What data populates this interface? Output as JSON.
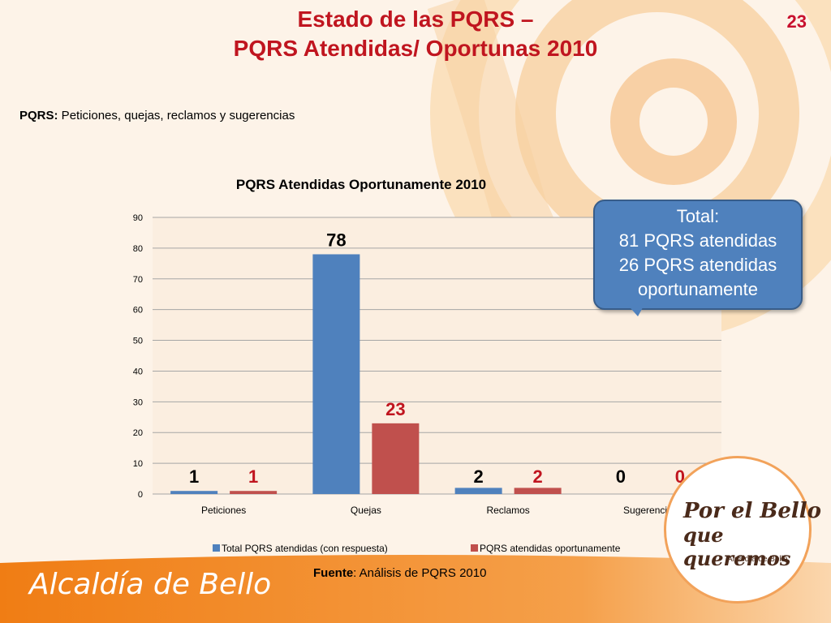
{
  "slide": {
    "title_line1": "Estado de las PQRS –",
    "title_line2": "PQRS Atendidas/ Oportunas 2010",
    "page_number": "23",
    "subtitle_bold": "PQRS:",
    "subtitle_text": " Peticiones, quejas, reclamos y sugerencias",
    "source_bold": "Fuente",
    "source_text": ": Análisis de PQRS 2010",
    "footer_brand": "Alcaldía de Bello",
    "logo_line1": "Por el Bello",
    "logo_line2": "que queremos",
    "logo_line3": "Alcaldía de Bello"
  },
  "callout": {
    "heading": "Total",
    "heading_suffix": ":",
    "line1": "81 PQRS atendidas",
    "line2": "26 PQRS atendidas",
    "line3": "oportunamente"
  },
  "colors": {
    "title": "#c0151f",
    "series1": "#4f81bd",
    "series2": "#c0504d",
    "callout": "#4f81bd",
    "footer": "#f08a1c"
  },
  "chart_data": {
    "type": "bar",
    "title": "PQRS Atendidas Oportunamente 2010",
    "categories": [
      "Peticiones",
      "Quejas",
      "Reclamos",
      "Sugerencias"
    ],
    "series": [
      {
        "name": "Total PQRS atendidas (con respuesta)",
        "values": [
          1,
          78,
          2,
          0
        ],
        "color": "#4f81bd"
      },
      {
        "name": "PQRS atendidas oportunamente",
        "values": [
          1,
          23,
          2,
          0
        ],
        "color": "#c0504d"
      }
    ],
    "data_labels": [
      [
        "1",
        "78",
        "2",
        "0"
      ],
      [
        "1",
        "23",
        "2",
        "0"
      ]
    ],
    "yticks": [
      "0",
      "10",
      "20",
      "30",
      "40",
      "50",
      "60",
      "70",
      "80",
      "90"
    ],
    "ylim": [
      0,
      90
    ],
    "grid": true,
    "legend_position": "bottom"
  }
}
